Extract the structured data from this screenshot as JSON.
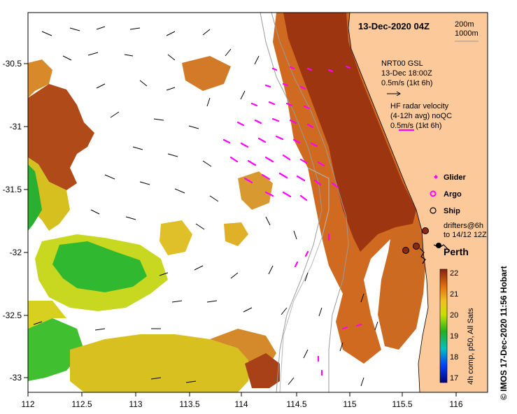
{
  "title": "13-Dec-2020 04Z",
  "depth_contours": [
    "200m",
    "1000m"
  ],
  "model_current": {
    "source": "NRT00 GSL",
    "time": "13-Dec 18:00Z",
    "scale": "0.5m/s (1kt 6h)"
  },
  "hf_radar": {
    "line1": "HF radar velocity",
    "line2": "(4-12h avg) noQC",
    "scale": "0.5m/s (1kt 6h)"
  },
  "platform_legend": {
    "glider": "Glider",
    "argo": "Argo",
    "ship": "Ship",
    "drifters_line1": "drifters@6h",
    "drifters_line2": "to 14/12 12Z"
  },
  "city_label": "Perth",
  "colorbar": {
    "ticks": [
      "22",
      "21",
      "20",
      "19",
      "18",
      "17"
    ],
    "label": "4h comp, p50, All Sats"
  },
  "credit": "© IMOS 17-Dec-2020 11:56 Hobart",
  "axes": {
    "lon_ticks": [
      "112",
      "112.5",
      "113",
      "113.5",
      "114",
      "114.5",
      "115",
      "115.5",
      "116"
    ],
    "lat_ticks": [
      "-30.5",
      "-31",
      "-31.5",
      "-32",
      "-32.5",
      "-33"
    ]
  },
  "colors": {
    "land": "#fbc99a",
    "hf_radar": "#ff00ff",
    "warm_sst": "#a33a10",
    "cool_sst": "#22b022"
  }
}
